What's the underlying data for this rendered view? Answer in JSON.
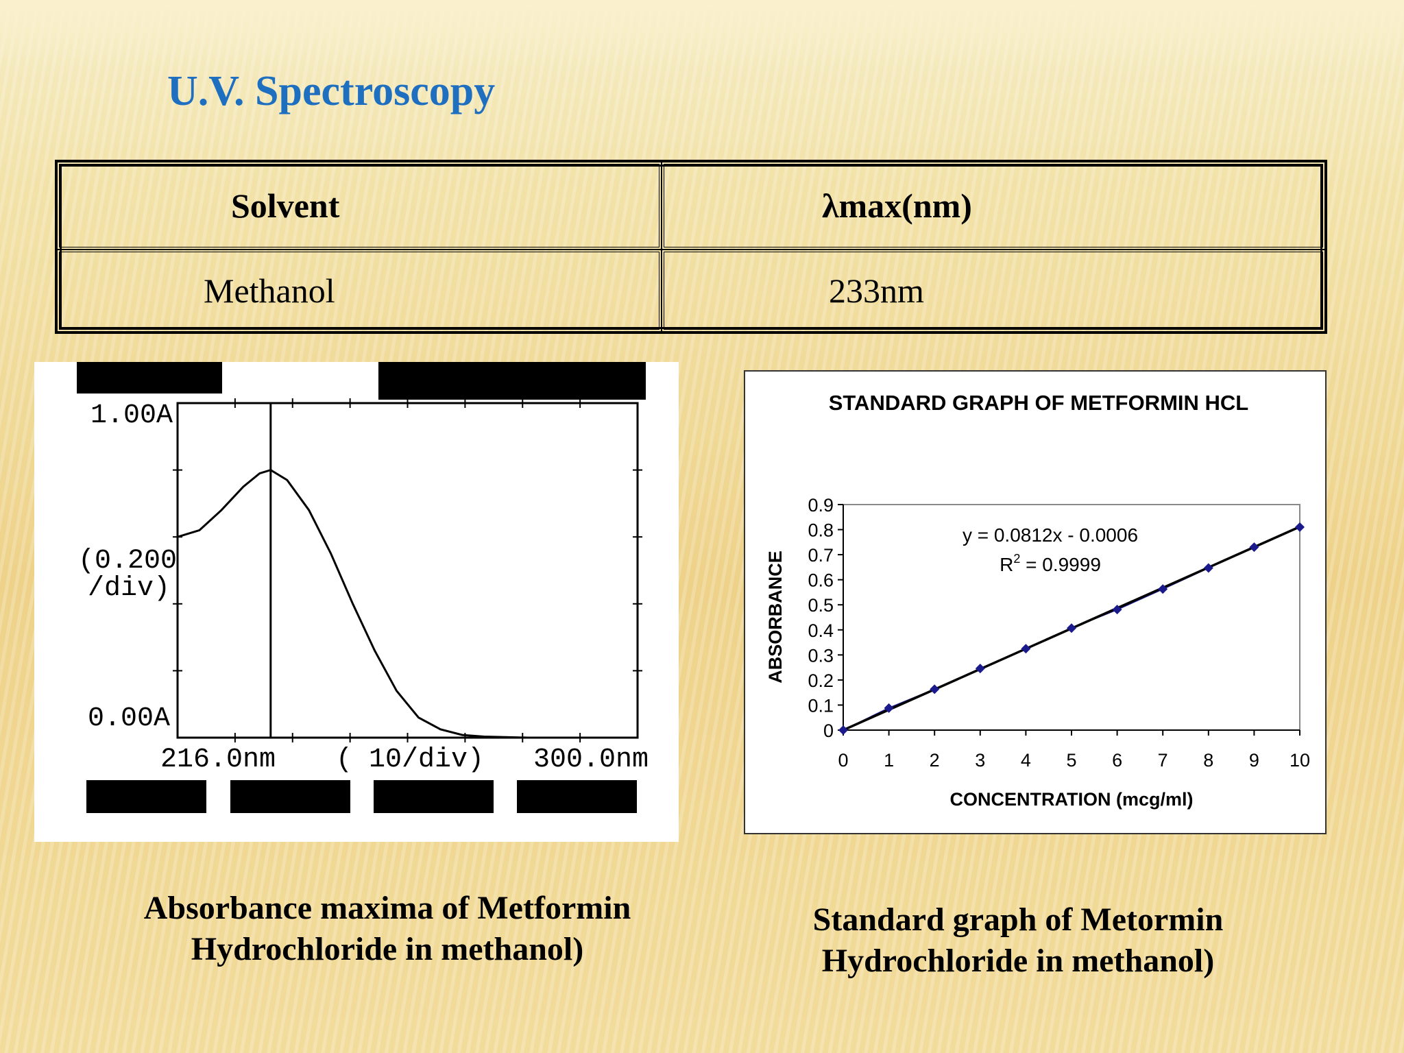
{
  "slide": {
    "title": "U.V. Spectroscopy"
  },
  "table": {
    "headers": [
      "Solvent",
      "λmax(nm)"
    ],
    "rows": [
      [
        "Methanol",
        "233nm"
      ]
    ]
  },
  "spectrum": {
    "y_top_label": "1.00A",
    "y_scale_label_1": "(0.200",
    "y_scale_label_2": "/div)",
    "y_bottom_label": "0.00A",
    "x_left_label": "216.0nm",
    "x_scale_label": "( 10/div)",
    "x_right_label": "300.0nm",
    "chart_data": {
      "type": "line",
      "x_range_nm": [
        216,
        300
      ],
      "y_range_A": [
        0,
        1
      ],
      "lambda_max_nm": 233,
      "x": [
        216,
        220,
        224,
        228,
        231,
        233,
        236,
        240,
        244,
        248,
        252,
        256,
        260,
        264,
        268,
        272,
        280,
        290,
        300
      ],
      "y": [
        0.6,
        0.62,
        0.68,
        0.75,
        0.79,
        0.8,
        0.77,
        0.68,
        0.55,
        0.4,
        0.26,
        0.14,
        0.06,
        0.025,
        0.008,
        0.003,
        0.0,
        0.0,
        0.0
      ]
    }
  },
  "standard_graph": {
    "equation": "y = 0.0812x - 0.0006",
    "r2_prefix": "R",
    "r2_sup": "2",
    "r2_rest": " = 0.9999",
    "chart_data": {
      "type": "scatter",
      "title": "STANDARD GRAPH OF METFORMIN HCL",
      "xlabel": "CONCENTRATION (mcg/ml)",
      "ylabel": "ABSORBANCE",
      "xlim": [
        0,
        10
      ],
      "ylim": [
        0,
        0.9
      ],
      "x_ticks": [
        "0",
        "1",
        "2",
        "3",
        "4",
        "5",
        "6",
        "7",
        "8",
        "9",
        "10"
      ],
      "y_ticks": [
        "0",
        "0.1",
        "0.2",
        "0.3",
        "0.4",
        "0.5",
        "0.6",
        "0.7",
        "0.8",
        "0.9"
      ],
      "series": [
        {
          "x": [
            0,
            1,
            2,
            3,
            4,
            5,
            6,
            7,
            8,
            9,
            10
          ],
          "values": [
            0,
            0.088,
            0.163,
            0.246,
            0.325,
            0.407,
            0.481,
            0.563,
            0.647,
            0.73,
            0.81
          ]
        }
      ],
      "trendline": {
        "slope": 0.0812,
        "intercept": -0.0006
      },
      "marker_color": "#1a1a8c",
      "line_color": "#000000"
    }
  },
  "captions": {
    "left_line1": "Absorbance maxima of Metformin",
    "left_line2": "Hydrochloride in methanol)",
    "right_line1": "Standard graph of Metormin",
    "right_line2": "Hydrochloride in methanol)"
  }
}
